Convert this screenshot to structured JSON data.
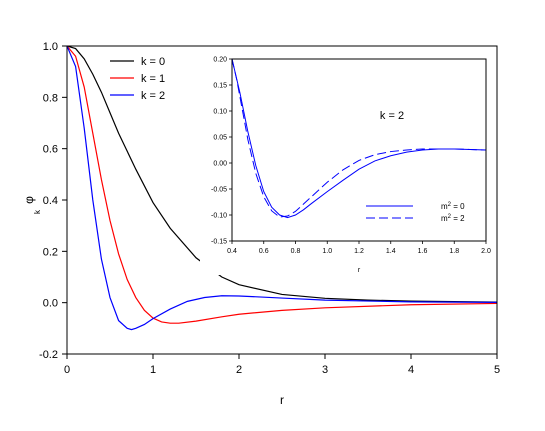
{
  "chart_data": [
    {
      "type": "line",
      "xlabel": "r",
      "ylabel": "φ",
      "ylabel_sub": "k",
      "xlim": [
        0,
        5
      ],
      "ylim": [
        -0.2,
        1.0
      ],
      "xticks": [
        "0",
        "1",
        "2",
        "3",
        "4",
        "5"
      ],
      "yticks": [
        "-0.2",
        "0.0",
        "0.2",
        "0.4",
        "0.6",
        "0.8",
        "1.0"
      ],
      "legend_position": "top-left",
      "series": [
        {
          "name": "k = 0",
          "color": "#000000",
          "dash": "solid",
          "x": [
            0,
            0.1,
            0.2,
            0.3,
            0.4,
            0.5,
            0.6,
            0.8,
            1.0,
            1.2,
            1.5,
            1.8,
            2.0,
            2.5,
            3.0,
            3.5,
            4.0,
            4.5,
            5.0
          ],
          "y": [
            1.0,
            0.99,
            0.95,
            0.89,
            0.82,
            0.74,
            0.66,
            0.52,
            0.39,
            0.29,
            0.175,
            0.1,
            0.07,
            0.032,
            0.017,
            0.01,
            0.006,
            0.004,
            0.002
          ]
        },
        {
          "name": "k = 1",
          "color": "#ff0000",
          "dash": "solid",
          "x": [
            0,
            0.1,
            0.2,
            0.3,
            0.4,
            0.5,
            0.6,
            0.7,
            0.8,
            0.9,
            1.0,
            1.1,
            1.2,
            1.3,
            1.5,
            1.8,
            2.0,
            2.5,
            3.0,
            4.0,
            5.0
          ],
          "y": [
            1.0,
            0.96,
            0.84,
            0.66,
            0.48,
            0.32,
            0.19,
            0.09,
            0.02,
            -0.03,
            -0.06,
            -0.075,
            -0.08,
            -0.08,
            -0.072,
            -0.055,
            -0.045,
            -0.03,
            -0.02,
            -0.008,
            -0.003
          ]
        },
        {
          "name": "k = 2",
          "color": "#0000ff",
          "dash": "solid",
          "x": [
            0,
            0.1,
            0.2,
            0.3,
            0.4,
            0.5,
            0.6,
            0.7,
            0.75,
            0.8,
            0.9,
            1.0,
            1.2,
            1.4,
            1.6,
            1.8,
            2.0,
            2.5,
            3.0,
            4.0,
            5.0
          ],
          "y": [
            1.0,
            0.92,
            0.68,
            0.4,
            0.17,
            0.02,
            -0.07,
            -0.1,
            -0.105,
            -0.1,
            -0.085,
            -0.062,
            -0.025,
            0.005,
            0.02,
            0.027,
            0.026,
            0.018,
            0.01,
            0.003,
            0.001
          ]
        }
      ]
    },
    {
      "type": "line",
      "annotation": "k = 2",
      "xlabel": "r",
      "xlim": [
        0.4,
        2.0
      ],
      "ylim": [
        -0.15,
        0.2
      ],
      "xticks": [
        "0.4",
        "0.6",
        "0.8",
        "1.0",
        "1.2",
        "1.4",
        "1.6",
        "1.8",
        "2.0"
      ],
      "yticks": [
        "-0.15",
        "-0.10",
        "-0.05",
        "0.00",
        "0.05",
        "0.10",
        "0.15",
        "0.20"
      ],
      "legend_position": "bottom-right",
      "series": [
        {
          "name": "m² = 0",
          "legend_main": "m",
          "legend_sup": "2",
          "legend_tail": " = 0",
          "color": "#0000ff",
          "dash": "solid",
          "x": [
            0.4,
            0.45,
            0.5,
            0.55,
            0.6,
            0.65,
            0.7,
            0.75,
            0.8,
            0.85,
            0.9,
            1.0,
            1.1,
            1.2,
            1.3,
            1.4,
            1.5,
            1.6,
            1.7,
            1.8,
            1.9,
            2.0
          ],
          "y": [
            0.2,
            0.135,
            0.06,
            -0.005,
            -0.055,
            -0.085,
            -0.1,
            -0.105,
            -0.1,
            -0.09,
            -0.078,
            -0.055,
            -0.033,
            -0.012,
            0.004,
            0.014,
            0.021,
            0.025,
            0.027,
            0.027,
            0.026,
            0.025
          ]
        },
        {
          "name": "m² = 2",
          "legend_main": "m",
          "legend_sup": "2",
          "legend_tail": " = 2",
          "color": "#0000ff",
          "dash": "dashed",
          "x": [
            0.4,
            0.43,
            0.5,
            0.55,
            0.6,
            0.65,
            0.7,
            0.75,
            0.8,
            0.9,
            1.0,
            1.1,
            1.2,
            1.3,
            1.4,
            1.5,
            1.6,
            1.7,
            1.8,
            1.9,
            2.0
          ],
          "y": [
            0.2,
            0.16,
            0.045,
            -0.02,
            -0.065,
            -0.092,
            -0.104,
            -0.102,
            -0.093,
            -0.065,
            -0.037,
            -0.013,
            0.005,
            0.016,
            0.022,
            0.025,
            0.027,
            0.027,
            0.027,
            0.026,
            0.025
          ]
        }
      ]
    }
  ]
}
